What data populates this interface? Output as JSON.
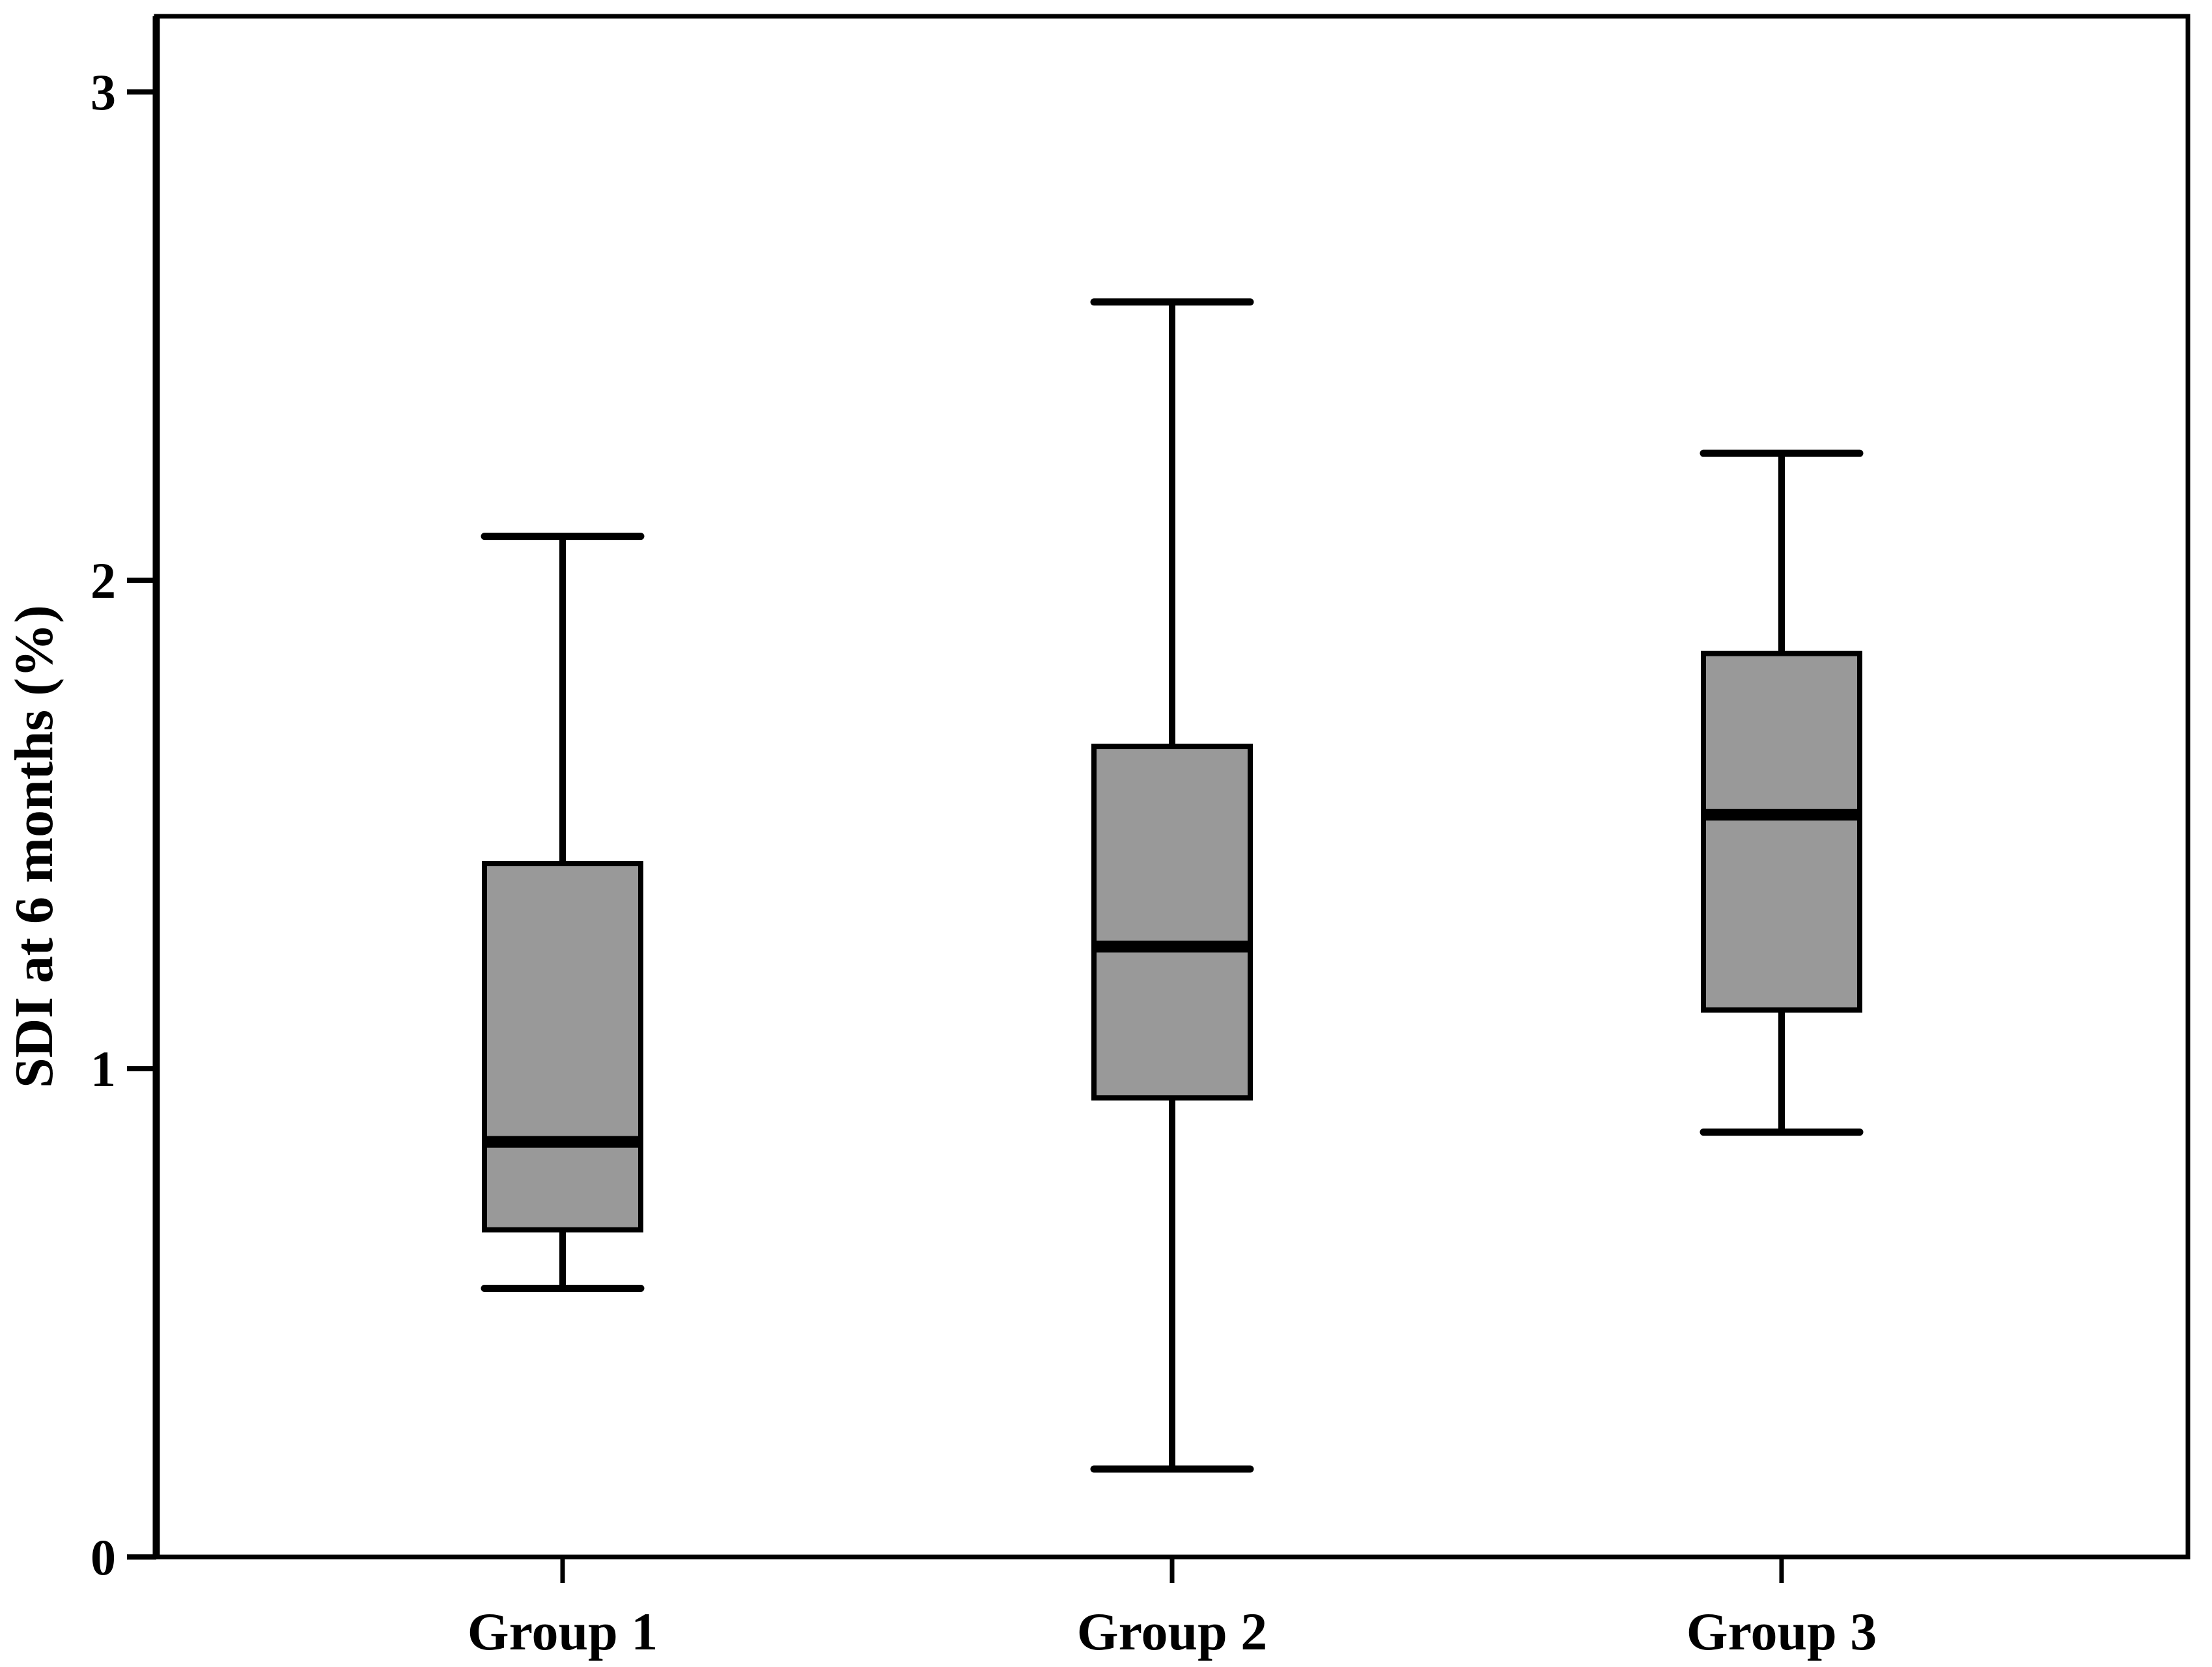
{
  "figure": {
    "background_color": "#ffffff",
    "frame_color": "#000000",
    "box_fill_color": "#999999",
    "line_color": "#000000"
  },
  "chart_data": {
    "type": "box",
    "title": "",
    "xlabel": "",
    "ylabel": "SDI at 6 months (%)",
    "categories": [
      "Group 1",
      "Group 2",
      "Group 3"
    ],
    "ytick_labels": [
      "0",
      "1",
      "2",
      "3"
    ],
    "yticks": [
      0,
      1,
      2,
      3
    ],
    "ylim": [
      0,
      3.155
    ],
    "grid": false,
    "legend": false,
    "series": [
      {
        "name": "Group 1",
        "whisker_low": 0.55,
        "q1": 0.67,
        "median": 0.85,
        "q3": 1.42,
        "whisker_high": 2.09
      },
      {
        "name": "Group 2",
        "whisker_low": 0.18,
        "q1": 0.94,
        "median": 1.25,
        "q3": 1.66,
        "whisker_high": 2.57
      },
      {
        "name": "Group 3",
        "whisker_low": 0.87,
        "q1": 1.12,
        "median": 1.52,
        "q3": 1.85,
        "whisker_high": 2.26
      }
    ]
  }
}
